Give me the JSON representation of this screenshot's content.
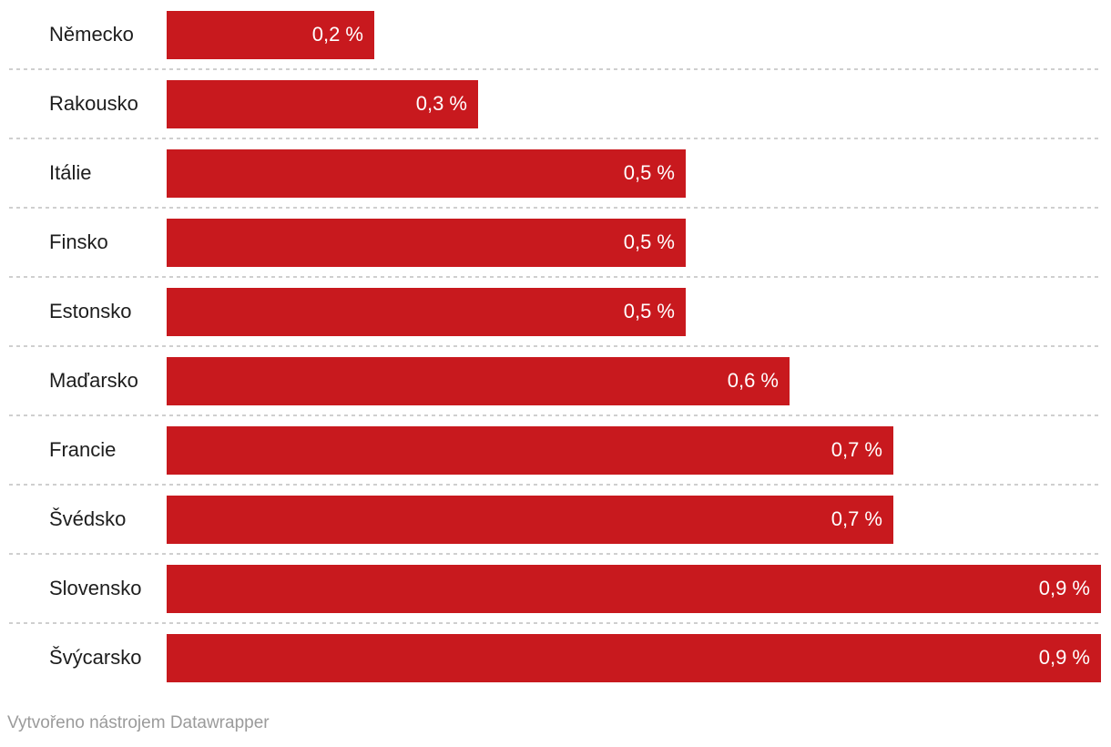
{
  "chart_data": {
    "type": "bar",
    "orientation": "horizontal",
    "title": "",
    "xlabel": "",
    "ylabel": "",
    "grid": "off",
    "legend": "none",
    "xlim": [
      0,
      0.9
    ],
    "categories": [
      "Německo",
      "Rakousko",
      "Itálie",
      "Finsko",
      "Estonsko",
      "Maďarsko",
      "Francie",
      "Švédsko",
      "Slovensko",
      "Švýcarsko"
    ],
    "values": [
      0.2,
      0.3,
      0.5,
      0.5,
      0.5,
      0.6,
      0.7,
      0.7,
      0.9,
      0.9
    ],
    "value_labels": [
      "0,2 %",
      "0,3 %",
      "0,5 %",
      "0,5 %",
      "0,5 %",
      "0,6 %",
      "0,7 %",
      "0,7 %",
      "0,9 %",
      "0,9 %"
    ],
    "colors": {
      "bar": "#c8191e",
      "value_label": "#ffffff",
      "category_label": "#1d1d1d",
      "separator": "#cfcfcf",
      "footer_text": "#9b9b9b"
    }
  },
  "footer": {
    "credit": "Vytvořeno nástrojem Datawrapper"
  }
}
